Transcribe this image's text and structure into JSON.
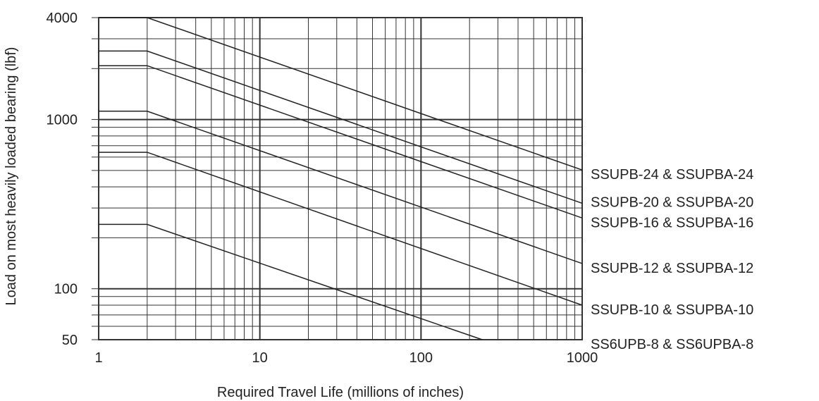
{
  "chart_data": {
    "type": "line",
    "title": "",
    "xlabel": "Required Travel Life (millions of inches)",
    "ylabel": "Load on most heavily loaded bearing (lbf)",
    "x_scale": "log",
    "y_scale": "log",
    "xlim": [
      1,
      1000
    ],
    "ylim": [
      50,
      4000
    ],
    "x_ticks": [
      1,
      10,
      100,
      1000
    ],
    "x_tick_labels": [
      "1",
      "10",
      "100",
      "1000"
    ],
    "y_ticks": [
      50,
      100,
      1000,
      4000
    ],
    "y_tick_labels": [
      "50",
      "100",
      "1000",
      "4000"
    ],
    "grid": true,
    "legend": "right-edge labels",
    "colors": {
      "line": "#222222",
      "grid": "#333333",
      "text": "#222222"
    },
    "series": [
      {
        "name": "SSUPB-24 & SSUPBA-24",
        "x": [
          1,
          2,
          1000
        ],
        "y": [
          4000,
          4000,
          503
        ]
      },
      {
        "name": "SSUPB-20 & SSUPBA-20",
        "x": [
          1,
          2,
          1000
        ],
        "y": [
          2540,
          2540,
          320
        ]
      },
      {
        "name": "SSUPB-16 & SSUPBA-16",
        "x": [
          1,
          2,
          1000
        ],
        "y": [
          2080,
          2080,
          262
        ]
      },
      {
        "name": "SSUPB-12 & SSUPBA-12",
        "x": [
          1,
          2,
          1000
        ],
        "y": [
          1120,
          1120,
          141
        ]
      },
      {
        "name": "SSUPB-10 & SSUPBA-10",
        "x": [
          1,
          2,
          1000
        ],
        "y": [
          640,
          640,
          80
        ]
      },
      {
        "name": "SS6UPB-8 & SS6UPBA-8",
        "x": [
          1,
          2,
          240
        ],
        "y": [
          240,
          240,
          50
        ]
      }
    ],
    "series_label_y": [
      503,
      320,
      262,
      141,
      80,
      50
    ]
  }
}
